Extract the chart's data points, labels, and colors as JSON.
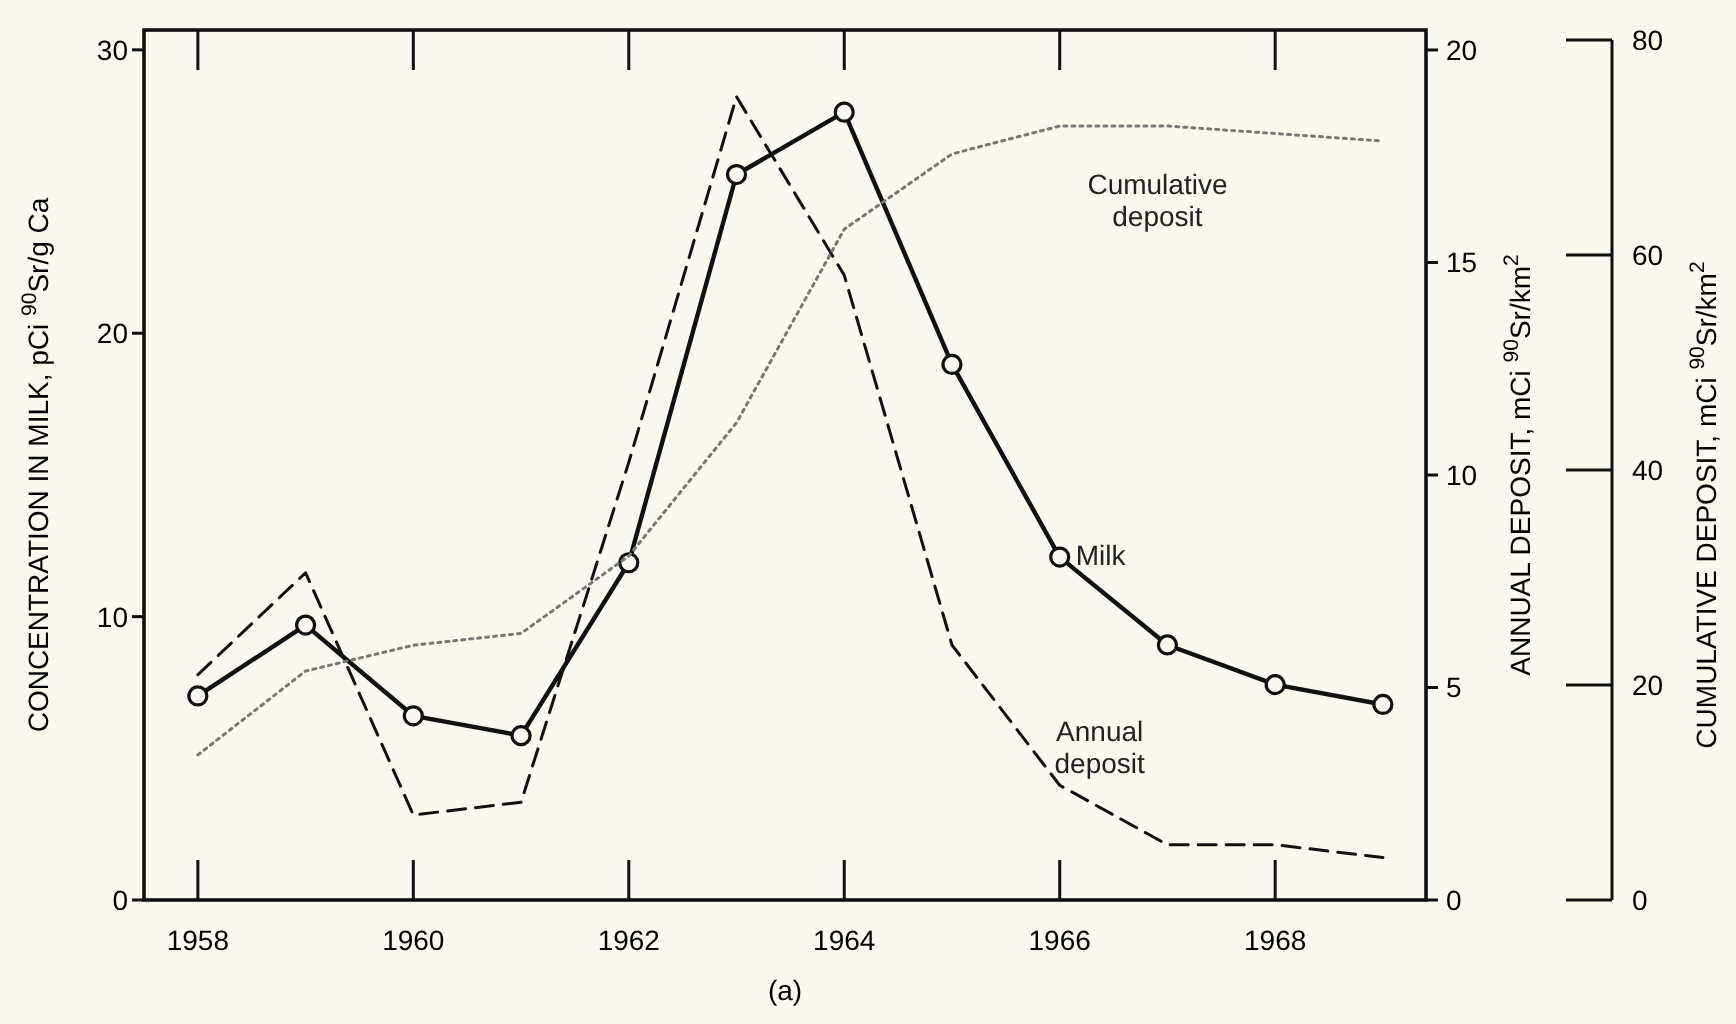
{
  "chart_data": {
    "type": "line",
    "xlabel": null,
    "ylabel": "CONCENTRATION IN MILK, pCi $^{90}$Sr/g Ca",
    "y2label": "ANNUAL DEPOSIT, mCi $^{90}$Sr/km$^{2}$",
    "y3label": "CUMULATIVE DEPOSIT, mCi $^{90}$Sr/km$^{2}$",
    "x": [
      1958,
      1959,
      1960,
      1961,
      1962,
      1963,
      1964,
      1965,
      1966,
      1967,
      1968,
      1969
    ],
    "xlim": [
      1957.5,
      1969.4
    ],
    "xticks": [
      1958,
      1960,
      1962,
      1964,
      1966,
      1968
    ],
    "ylim": [
      0,
      30.7
    ],
    "yticks": [
      0,
      10,
      20,
      30
    ],
    "y2lim": [
      0,
      20.47
    ],
    "y2ticks": [
      0,
      5,
      10,
      15,
      20
    ],
    "y3lim": [
      0,
      80
    ],
    "y3ticks": [
      0,
      20,
      40,
      60,
      80
    ],
    "grid": false,
    "legend": false,
    "series": [
      {
        "name": "Milk",
        "color": "#111111",
        "marker": "circle",
        "line_style": "solid",
        "values": [
          7.2,
          9.7,
          6.5,
          5.8,
          11.9,
          25.6,
          27.8,
          18.9,
          12.1,
          9.0,
          7.6,
          6.9
        ]
      },
      {
        "name": "Annual deposit",
        "color": "#111111",
        "marker": "none",
        "line_style": "dashed",
        "axis": "y2",
        "values": [
          5.3,
          7.7,
          2.0,
          2.3,
          10.3,
          18.9,
          14.7,
          6.0,
          2.7,
          1.3,
          1.3,
          1.0
        ]
      },
      {
        "name": "Cumulative deposit",
        "color": "#777777",
        "marker": "none",
        "line_style": "dotted",
        "axis": "y3",
        "values": [
          13.5,
          21.3,
          23.7,
          24.8,
          32,
          44.4,
          62.4,
          69.4,
          72,
          72,
          71.3,
          70.6
        ]
      }
    ],
    "annotations": [
      "(a)"
    ]
  }
}
